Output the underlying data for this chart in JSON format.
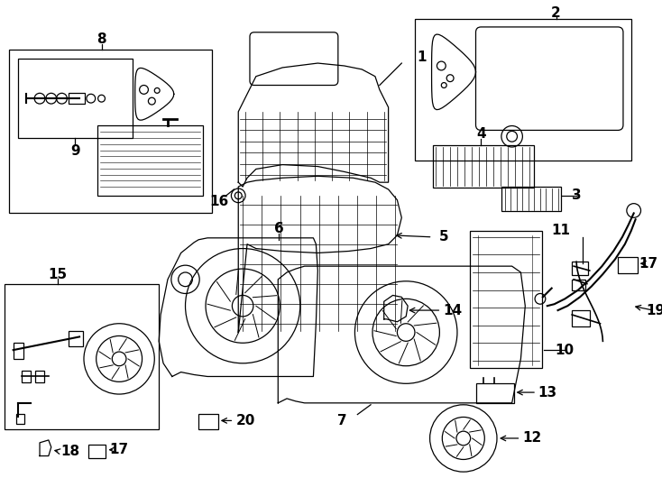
{
  "bg": "#ffffff",
  "lc": "#000000",
  "fw": 7.34,
  "fh": 5.4,
  "dpi": 100
}
